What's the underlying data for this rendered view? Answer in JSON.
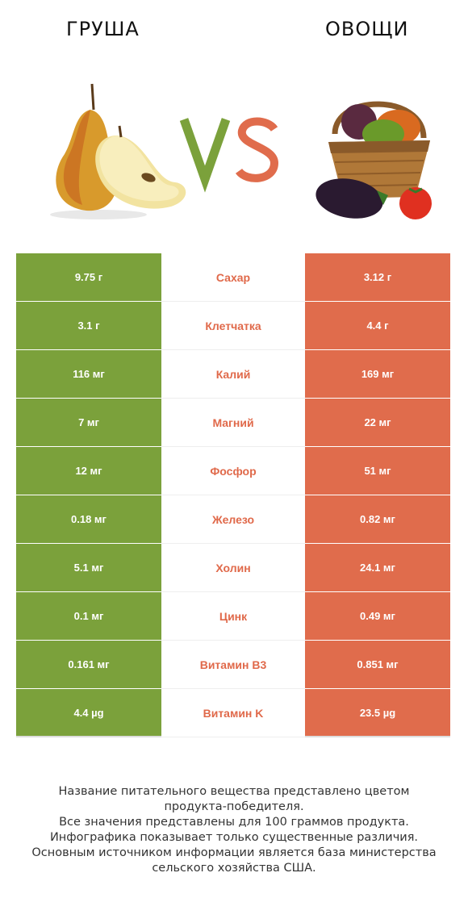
{
  "header": {
    "left_title": "ГРУША",
    "right_title": "ОВОЩИ",
    "vs_label": "VS",
    "colors": {
      "left": "#7ba13b",
      "right": "#e06c4c"
    }
  },
  "rows": [
    {
      "left": "9.75 г",
      "name": "Сахар",
      "right": "3.12 г"
    },
    {
      "left": "3.1 г",
      "name": "Клетчатка",
      "right": "4.4 г"
    },
    {
      "left": "116 мг",
      "name": "Калий",
      "right": "169 мг"
    },
    {
      "left": "7 мг",
      "name": "Магний",
      "right": "22 мг"
    },
    {
      "left": "12 мг",
      "name": "Фосфор",
      "right": "51 мг"
    },
    {
      "left": "0.18 мг",
      "name": "Железо",
      "right": "0.82 мг"
    },
    {
      "left": "5.1 мг",
      "name": "Холин",
      "right": "24.1 мг"
    },
    {
      "left": "0.1 мг",
      "name": "Цинк",
      "right": "0.49 мг"
    },
    {
      "left": "0.161 мг",
      "name": "Витамин B3",
      "right": "0.851 мг"
    },
    {
      "left": "4.4 µg",
      "name": "Витамин K",
      "right": "23.5 µg"
    }
  ],
  "footer": {
    "line1": "Название питательного вещества представлено цветом",
    "line2": "продукта-победителя.",
    "line3": "Все значения представлены для 100 граммов продукта.",
    "line4": "Инфографика показывает только существенные различия.",
    "line5": "Основным источником информации является база министерства",
    "line6": "сельского хозяйства США."
  }
}
